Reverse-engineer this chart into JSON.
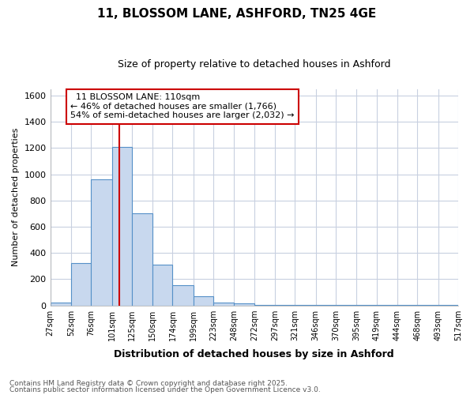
{
  "title_line1": "11, BLOSSOM LANE, ASHFORD, TN25 4GE",
  "title_line2": "Size of property relative to detached houses in Ashford",
  "xlabel": "Distribution of detached houses by size in Ashford",
  "ylabel": "Number of detached properties",
  "annotation_line1": "11 BLOSSOM LANE: 110sqm",
  "annotation_line2": "← 46% of detached houses are smaller (1,766)",
  "annotation_line3": "54% of semi-detached houses are larger (2,032) →",
  "property_size": 110,
  "bin_edges": [
    27,
    52,
    76,
    101,
    125,
    150,
    174,
    199,
    223,
    248,
    272,
    297,
    321,
    346,
    370,
    395,
    419,
    444,
    468,
    493,
    517
  ],
  "bar_values": [
    20,
    320,
    960,
    1210,
    700,
    310,
    155,
    70,
    20,
    15,
    5,
    5,
    3,
    2,
    2,
    1,
    1,
    1,
    1,
    1
  ],
  "bar_color": "#c8d8ee",
  "bar_edge_color": "#5590c8",
  "vline_color": "#cc0000",
  "background_color": "#ffffff",
  "grid_color": "#c8d0e0",
  "ylim": [
    0,
    1650
  ],
  "yticks": [
    0,
    200,
    400,
    600,
    800,
    1000,
    1200,
    1400,
    1600
  ],
  "footer_line1": "Contains HM Land Registry data © Crown copyright and database right 2025.",
  "footer_line2": "Contains public sector information licensed under the Open Government Licence v3.0."
}
